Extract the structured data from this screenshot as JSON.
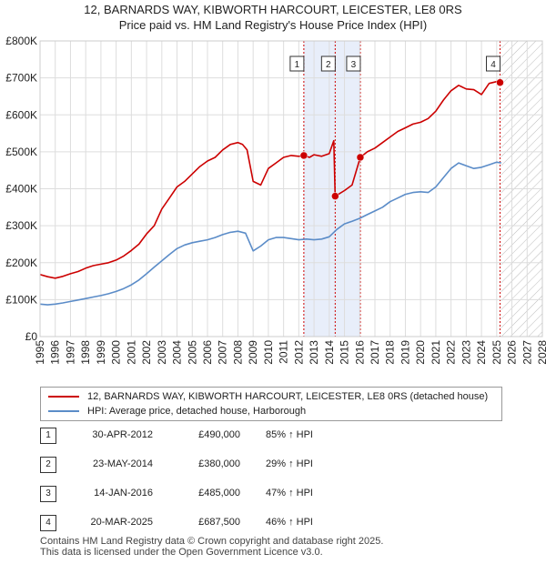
{
  "title_line1": "12, BARNARDS WAY, KIBWORTH HARCOURT, LEICESTER, LE8 0RS",
  "title_line2": "Price paid vs. HM Land Registry's House Price Index (HPI)",
  "colors": {
    "price_line": "#cc0000",
    "hpi_line": "#5b8cc8",
    "shade": "#e8eefa",
    "grid": "#dddddd",
    "marker_line": "#cc0000",
    "hatch": "#bbbbbb"
  },
  "chart_data": {
    "type": "line",
    "title": "Price paid vs. HM Land Registry's House Price Index (HPI)",
    "xlabel": "",
    "ylabel": "",
    "xlim": [
      1995,
      2028
    ],
    "ylim": [
      0,
      800000
    ],
    "y_ticks": [
      {
        "value": 0,
        "label": "£0"
      },
      {
        "value": 100000,
        "label": "£100K"
      },
      {
        "value": 200000,
        "label": "£200K"
      },
      {
        "value": 300000,
        "label": "£300K"
      },
      {
        "value": 400000,
        "label": "£400K"
      },
      {
        "value": 500000,
        "label": "£500K"
      },
      {
        "value": 600000,
        "label": "£600K"
      },
      {
        "value": 700000,
        "label": "£700K"
      },
      {
        "value": 800000,
        "label": "£800K"
      }
    ],
    "x_ticks": [
      "1995",
      "1996",
      "1997",
      "1998",
      "1999",
      "2000",
      "2001",
      "2002",
      "2003",
      "2004",
      "2005",
      "2006",
      "2007",
      "2008",
      "2009",
      "2010",
      "2011",
      "2012",
      "2013",
      "2014",
      "2015",
      "2016",
      "2017",
      "2018",
      "2019",
      "2020",
      "2021",
      "2022",
      "2023",
      "2024",
      "2025",
      "2026",
      "2027",
      "2028"
    ],
    "shaded_range": [
      2012.33,
      2016.04
    ],
    "future_from": 2025.3,
    "series": [
      {
        "name": "12, BARNARDS WAY, KIBWORTH HARCOURT, LEICESTER, LE8 0RS (detached house)",
        "color": "#cc0000",
        "x": [
          1995,
          1995.5,
          1996,
          1996.5,
          1997,
          1997.5,
          1998,
          1998.5,
          1999,
          1999.5,
          2000,
          2000.5,
          2001,
          2001.5,
          2002,
          2002.5,
          2003,
          2003.5,
          2004,
          2004.5,
          2005,
          2005.5,
          2006,
          2006.5,
          2007,
          2007.5,
          2008,
          2008.3,
          2008.6,
          2009,
          2009.5,
          2010,
          2010.5,
          2011,
          2011.5,
          2012,
          2012.33,
          2012.7,
          2013,
          2013.5,
          2014,
          2014.3,
          2014.39,
          2014.6,
          2015,
          2015.5,
          2016.04,
          2016.5,
          2017,
          2017.5,
          2018,
          2018.5,
          2019,
          2019.5,
          2020,
          2020.5,
          2021,
          2021.5,
          2022,
          2022.5,
          2023,
          2023.5,
          2024,
          2024.5,
          2025,
          2025.22,
          2025.3
        ],
        "values": [
          168000,
          162000,
          158000,
          163000,
          170000,
          176000,
          185000,
          192000,
          196000,
          200000,
          207000,
          218000,
          233000,
          250000,
          278000,
          300000,
          345000,
          375000,
          405000,
          420000,
          440000,
          460000,
          475000,
          485000,
          505000,
          520000,
          525000,
          520000,
          505000,
          420000,
          410000,
          455000,
          470000,
          485000,
          490000,
          488000,
          490000,
          485000,
          492000,
          488000,
          495000,
          530000,
          380000,
          385000,
          395000,
          410000,
          485000,
          500000,
          510000,
          525000,
          540000,
          555000,
          565000,
          575000,
          580000,
          590000,
          610000,
          640000,
          665000,
          680000,
          670000,
          668000,
          655000,
          685000,
          690000,
          687500,
          690000
        ]
      },
      {
        "name": "HPI: Average price, detached house, Harborough",
        "color": "#5b8cc8",
        "x": [
          1995,
          1995.5,
          1996,
          1996.5,
          1997,
          1997.5,
          1998,
          1998.5,
          1999,
          1999.5,
          2000,
          2000.5,
          2001,
          2001.5,
          2002,
          2002.5,
          2003,
          2003.5,
          2004,
          2004.5,
          2005,
          2005.5,
          2006,
          2006.5,
          2007,
          2007.5,
          2008,
          2008.5,
          2009,
          2009.5,
          2010,
          2010.5,
          2011,
          2011.5,
          2012,
          2012.5,
          2013,
          2013.5,
          2014,
          2014.5,
          2015,
          2015.5,
          2016,
          2016.5,
          2017,
          2017.5,
          2018,
          2018.5,
          2019,
          2019.5,
          2020,
          2020.5,
          2021,
          2021.5,
          2022,
          2022.5,
          2023,
          2023.5,
          2024,
          2024.5,
          2025,
          2025.3
        ],
        "values": [
          88000,
          86000,
          88000,
          91000,
          95000,
          99000,
          103000,
          107000,
          111000,
          116000,
          122000,
          130000,
          140000,
          153000,
          170000,
          188000,
          205000,
          222000,
          238000,
          248000,
          254000,
          258000,
          262000,
          268000,
          276000,
          282000,
          285000,
          280000,
          232000,
          245000,
          262000,
          268000,
          268000,
          265000,
          262000,
          264000,
          262000,
          264000,
          270000,
          290000,
          305000,
          312000,
          320000,
          330000,
          340000,
          350000,
          365000,
          375000,
          385000,
          390000,
          392000,
          390000,
          405000,
          430000,
          455000,
          470000,
          462000,
          455000,
          458000,
          465000,
          472000,
          470000
        ]
      }
    ],
    "sales": [
      {
        "label": "1",
        "date": "30-APR-2012",
        "x": 2012.33,
        "price": 490000,
        "price_text": "£490,000",
        "hpi_text": "85% ↑ HPI"
      },
      {
        "label": "2",
        "date": "23-MAY-2014",
        "x": 2014.39,
        "price": 380000,
        "price_text": "£380,000",
        "hpi_text": "29% ↑ HPI"
      },
      {
        "label": "3",
        "date": "14-JAN-2016",
        "x": 2016.04,
        "price": 485000,
        "price_text": "£485,000",
        "hpi_text": "47% ↑ HPI"
      },
      {
        "label": "4",
        "date": "20-MAR-2025",
        "x": 2025.22,
        "price": 687500,
        "price_text": "£687,500",
        "hpi_text": "46% ↑ HPI"
      }
    ]
  },
  "legend": {
    "price_label": "12, BARNARDS WAY, KIBWORTH HARCOURT, LEICESTER, LE8 0RS (detached house)",
    "hpi_label": "HPI: Average price, detached house, Harborough"
  },
  "footer": {
    "line1": "Contains HM Land Registry data © Crown copyright and database right 2025.",
    "line2": "This data is licensed under the Open Government Licence v3.0."
  }
}
